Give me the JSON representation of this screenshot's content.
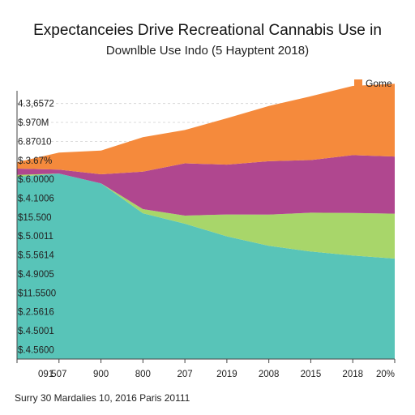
{
  "title": "Expectanceies Drive Recreational Cannabis Use  in",
  "subtitle": "Downlble Use Indo (5 Hayptent 2018)",
  "source": "Surry 30 Mardalies 10, 2016 Paris 20111",
  "colors": {
    "series1": "#58c4b8",
    "series2": "#a8d66a",
    "series3": "#b0478f",
    "series4": "#f58a3c",
    "axis": "#444444",
    "grid": "#cfcfcf"
  },
  "chart_data": {
    "type": "area",
    "stacked": true,
    "title": "Expectanceies Drive Recreational Cannabis Use  in",
    "subtitle": "Downlble Use Indo (5 Hayptent 2018)",
    "x_tick_labels": [
      "091",
      "507",
      "900",
      "800",
      "207",
      "2019",
      "2008",
      "2015",
      "2018",
      "20%"
    ],
    "y_tick_labels": [
      "$.4.5600",
      "$.4.5001",
      "$.2.5616",
      "$11.5500",
      "$.4.9005",
      "$.5.5614",
      "$.5.0011",
      "$15.500",
      "$.4.1006",
      "$.6.0000",
      "$.3.67%",
      "6.87010",
      "$.970M",
      "4.3,6572"
    ],
    "ylim": [
      0,
      14
    ],
    "grid": "horizontal-dashed",
    "legend": {
      "position": "top-right",
      "entries": [
        "Gome"
      ]
    },
    "series": [
      {
        "name": "Gome",
        "values": [
          0.34,
          0.9,
          1.25,
          1.82,
          1.76,
          2.45,
          2.92,
          3.37,
          3.66,
          3.84
        ]
      },
      {
        "values": [
          0.33,
          0.21,
          0.48,
          1.98,
          2.76,
          2.63,
          2.82,
          2.78,
          3.05,
          3.02
        ]
      },
      {
        "values": [
          0.1,
          0.0,
          0.0,
          0.22,
          0.43,
          1.16,
          1.65,
          2.05,
          2.25,
          2.37
        ]
      },
      {
        "values": [
          9.63,
          9.8,
          9.28,
          7.7,
          7.15,
          6.48,
          5.98,
          5.68,
          5.47,
          5.31
        ]
      }
    ]
  }
}
